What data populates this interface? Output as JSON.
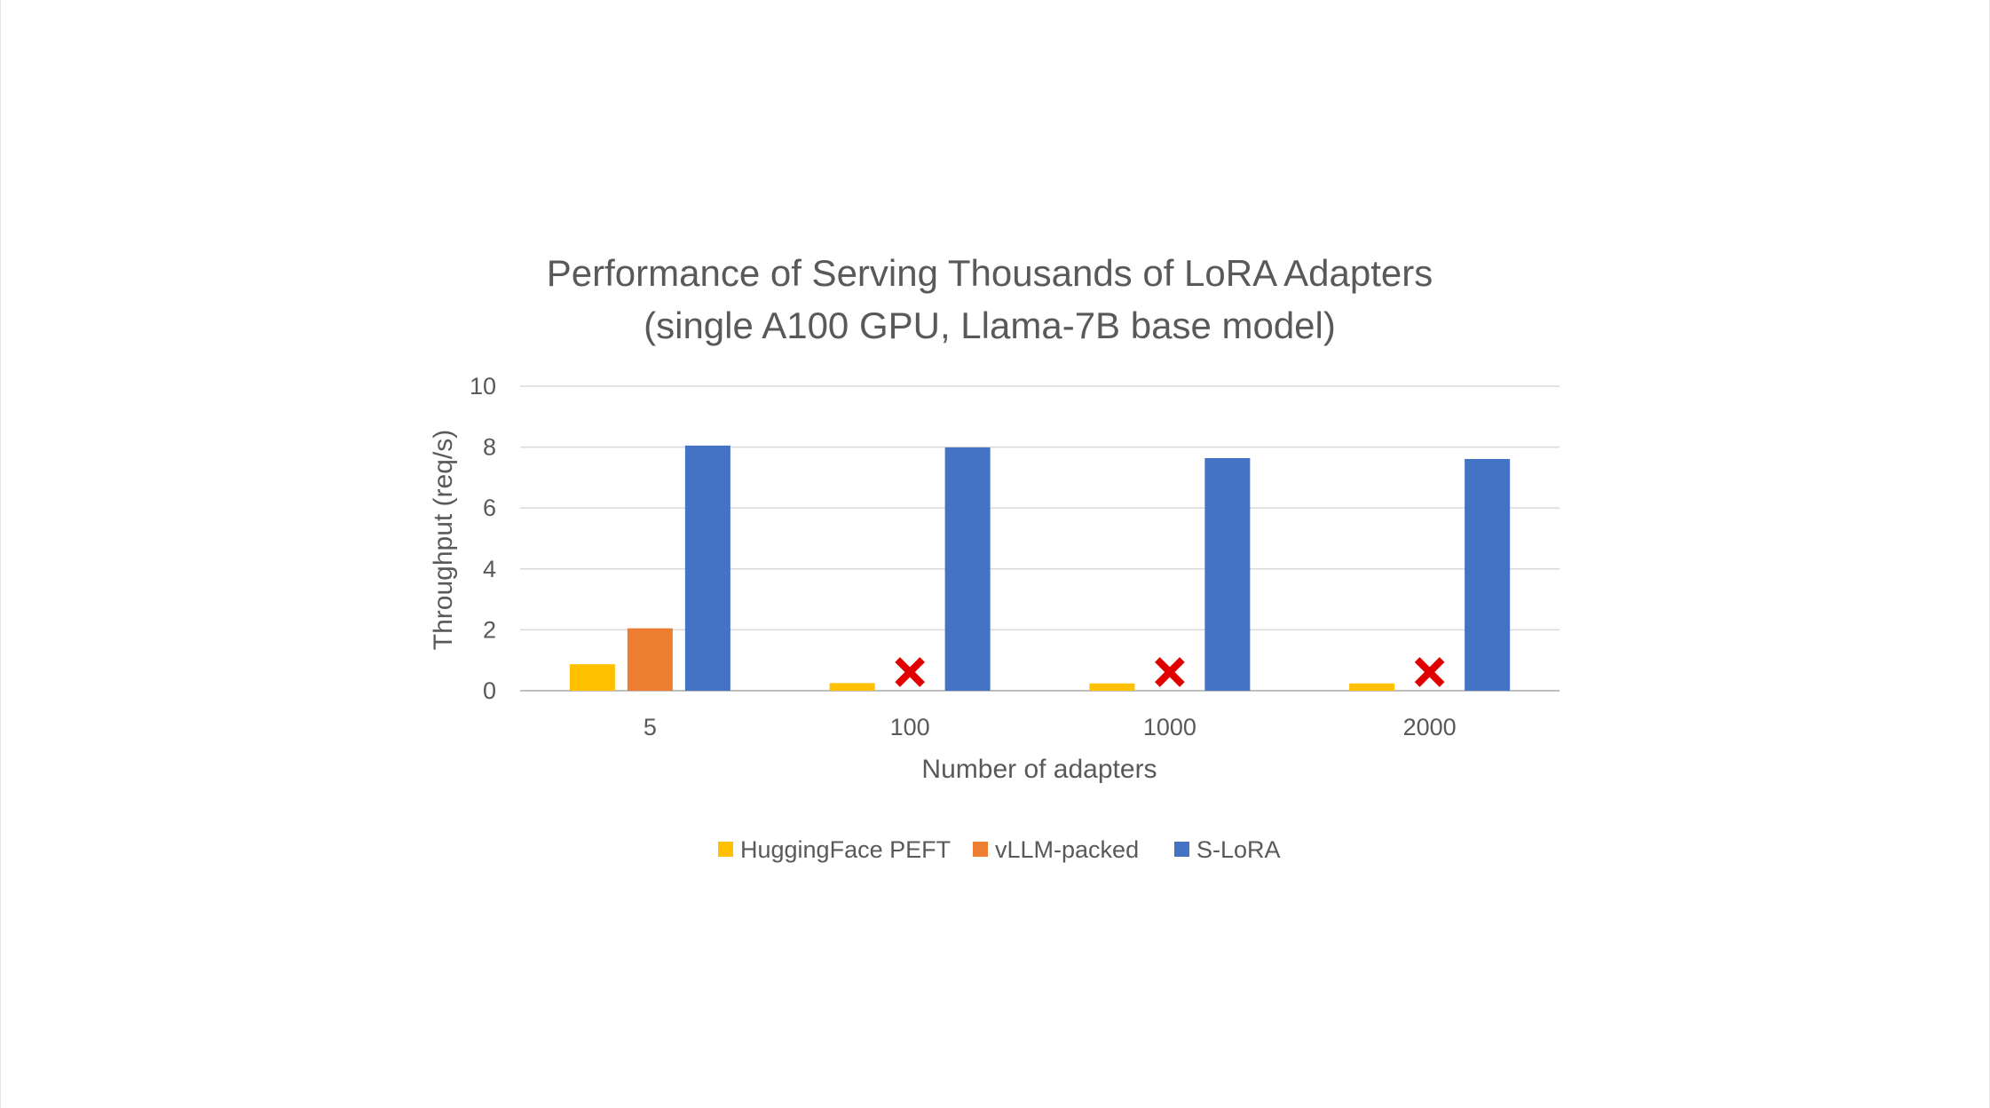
{
  "chart_data": {
    "type": "bar",
    "title_lines": [
      "Performance of Serving Thousands of LoRA Adapters",
      "(single A100 GPU, Llama-7B base model)"
    ],
    "xlabel": "Number of adapters",
    "ylabel": "Throughput (req/s)",
    "categories": [
      "5",
      "100",
      "1000",
      "2000"
    ],
    "ylim": [
      0,
      10
    ],
    "yticks": [
      0,
      2,
      4,
      6,
      8,
      10
    ],
    "grid": true,
    "legend_position": "bottom",
    "series": [
      {
        "name": "HuggingFace PEFT",
        "color": "#FFC000",
        "values": [
          0.87,
          0.25,
          0.24,
          0.24
        ]
      },
      {
        "name": "vLLM-packed",
        "color": "#ED7D31",
        "values": [
          2.05,
          null,
          null,
          null
        ]
      },
      {
        "name": "S-LoRA",
        "color": "#4472C4",
        "values": [
          8.05,
          7.99,
          7.64,
          7.61
        ]
      }
    ],
    "failure_markers": {
      "series": "vLLM-packed",
      "symbol": "✕",
      "color": "#E00000",
      "categories": [
        "100",
        "1000",
        "2000"
      ]
    }
  }
}
